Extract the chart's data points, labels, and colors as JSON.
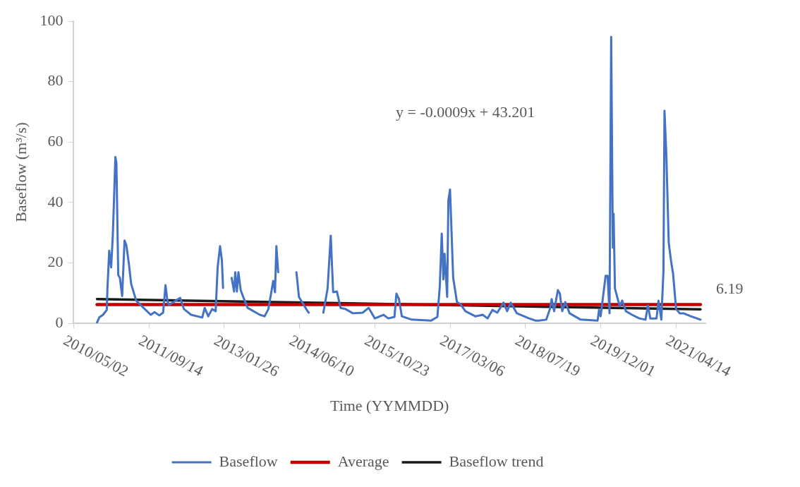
{
  "chart_data": {
    "type": "line",
    "xlabel": "Time (YYMMDD)",
    "ylabel": "Baseflow (m³/s)",
    "xlim": [
      "2010-05-02",
      "2021-10-26"
    ],
    "xticks": [
      {
        "value": "2010-05-02",
        "label": "2010/05/02"
      },
      {
        "value": "2011-09-14",
        "label": "2011/09/14"
      },
      {
        "value": "2013-01-26",
        "label": "2013/01/26"
      },
      {
        "value": "2014-06-10",
        "label": "2014/06/10"
      },
      {
        "value": "2015-10-23",
        "label": "2015/10/23"
      },
      {
        "value": "2017-03-06",
        "label": "2017/03/06"
      },
      {
        "value": "2018-07-19",
        "label": "2018/07/19"
      },
      {
        "value": "2019-12-01",
        "label": "2019/12/01"
      },
      {
        "value": "2021-04-14",
        "label": "2021/04/14"
      }
    ],
    "ylim": [
      0,
      100
    ],
    "yticks": [
      0,
      20,
      40,
      60,
      80,
      100
    ],
    "grid": false,
    "legend": "bottom",
    "marker": "none",
    "annotations": [
      "y = -0.0009x + 43.201"
    ],
    "series": [
      {
        "name": "Baseflow",
        "color": "#4472c4",
        "x": [
          "2010-10-04",
          "2010-10-20",
          "2010-11-13",
          "2010-12-08",
          "2010-12-12",
          "2010-12-24",
          "2011-01-06",
          "2011-01-17",
          "2011-01-25",
          "2011-02-03",
          "2011-02-10",
          "2011-02-22",
          "2011-03-05",
          "2011-03-20",
          "2011-04-05",
          "2011-04-17",
          "2011-05-03",
          "2011-05-19",
          "2011-06-21",
          "2011-08-17",
          "2011-09-26",
          "2011-10-21",
          "2011-11-22",
          "2011-12-17",
          "2012-01-02",
          "2012-01-13",
          "2012-01-23",
          "2012-04-08",
          "2012-05-03",
          "2012-06-20",
          "2012-09-02",
          "2012-09-18",
          "2012-10-12",
          "2012-11-06",
          "2012-11-30",
          "2012-12-13",
          "2012-12-29",
          "2013-01-10",
          "2013-01-18",
          "2013-02-15",
          "2013-03-16",
          "2013-04-01",
          "2013-04-09",
          "2013-04-20",
          "2013-04-30",
          "2013-05-15",
          "2013-06-05",
          "2013-06-30",
          "2013-09-19",
          "2013-10-21",
          "2013-11-15",
          "2013-12-17",
          "2013-12-29",
          "2014-01-07",
          "2014-01-19",
          "2014-03-20",
          "2014-05-20",
          "2014-06-06",
          "2014-08-02",
          "2014-08-10",
          "2014-10-01",
          "2014-11-15",
          "2014-12-13",
          "2015-01-03",
          "2015-01-19",
          "2015-02-13",
          "2015-03-09",
          "2015-04-11",
          "2015-05-30",
          "2015-08-03",
          "2015-09-12",
          "2015-10-23",
          "2015-12-19",
          "2016-01-20",
          "2016-03-01",
          "2016-03-14",
          "2016-03-31",
          "2016-04-19",
          "2016-06-23",
          "2016-10-31",
          "2016-12-11",
          "2016-12-27",
          "2017-01-09",
          "2017-01-20",
          "2017-01-28",
          "2017-02-14",
          "2017-02-22",
          "2017-03-05",
          "2017-03-26",
          "2017-04-20",
          "2017-05-14",
          "2017-06-15",
          "2017-08-20",
          "2017-10-08",
          "2017-11-09",
          "2017-12-11",
          "2018-01-13",
          "2018-02-23",
          "2018-03-19",
          "2018-04-12",
          "2018-05-23",
          "2018-08-12",
          "2018-09-22",
          "2018-10-16",
          "2018-12-04",
          "2018-12-28",
          "2019-01-09",
          "2019-01-25",
          "2019-02-19",
          "2019-03-04",
          "2019-03-20",
          "2019-04-09",
          "2019-05-08",
          "2019-07-20",
          "2019-11-10",
          "2019-11-19",
          "2019-11-30",
          "2020-01-02",
          "2020-01-15",
          "2020-01-28",
          "2020-02-08",
          "2020-02-19",
          "2020-02-24",
          "2020-03-04",
          "2020-04-05",
          "2020-04-21",
          "2020-05-16",
          "2020-06-25",
          "2020-08-13",
          "2020-09-23",
          "2020-10-09",
          "2020-10-25",
          "2020-12-05",
          "2020-12-18",
          "2021-01-06",
          "2021-01-20",
          "2021-01-27",
          "2021-02-08",
          "2021-02-24",
          "2021-03-12",
          "2021-03-25",
          "2021-04-14",
          "2021-05-08",
          "2021-06-02",
          "2021-07-21",
          "2021-09-23"
        ],
        "values": [
          0.2,
          2,
          2.8,
          4.4,
          11,
          24,
          18.5,
          29,
          41,
          55,
          53,
          16,
          15,
          9,
          27.4,
          25.8,
          20,
          13,
          7.5,
          4.7,
          2.8,
          3.7,
          2.6,
          3.5,
          12.6,
          8,
          6,
          8.4,
          4.7,
          2.8,
          1.9,
          5.1,
          2.3,
          4.7,
          4,
          18.5,
          25.5,
          21,
          11.7,
          null,
          15,
          10.5,
          16.9,
          10.5,
          16.9,
          11,
          8.2,
          5.1,
          2.8,
          2.3,
          4.7,
          14,
          10.3,
          25.5,
          16.9,
          null,
          16.9,
          8.7,
          4,
          3.5,
          null,
          3.5,
          11.5,
          29,
          10.3,
          10.5,
          5.1,
          4.7,
          3.3,
          3.5,
          5.1,
          1.6,
          2.8,
          1.6,
          2.1,
          9.8,
          8,
          2.3,
          1.2,
          0.9,
          2.1,
          12.2,
          29.7,
          14.5,
          23,
          8.7,
          40.7,
          44.3,
          15,
          7,
          6.3,
          4,
          2.3,
          2.8,
          1.6,
          4.4,
          3.5,
          6.8,
          4,
          6.8,
          3.3,
          1.6,
          0.9,
          0.9,
          1.2,
          4.7,
          8,
          4,
          11,
          9.8,
          4,
          7,
          3.3,
          1.2,
          0.9,
          4.4,
          2.3,
          15.7,
          15.7,
          3.3,
          94.8,
          25,
          36.3,
          11.5,
          5.6,
          7.5,
          4,
          2.8,
          1.6,
          1.2,
          5.9,
          1.6,
          1.6,
          7.5,
          1.2,
          17.3,
          70.3,
          56.2,
          26.7,
          20.4,
          16.4,
          4.7,
          3.3,
          3.3,
          2.3,
          1.2
        ]
      },
      {
        "name": "Average",
        "color": "#c00000",
        "x": [
          "2010-10-04",
          "2021-09-23"
        ],
        "values": [
          6.19,
          6.19
        ],
        "value_labels": [
          null,
          "6.19"
        ]
      },
      {
        "name": "Baseflow trend",
        "color": "#1a1a1a",
        "x": [
          "2010-10-04",
          "2021-09-23"
        ],
        "values": [
          8.0,
          4.6
        ]
      }
    ]
  }
}
